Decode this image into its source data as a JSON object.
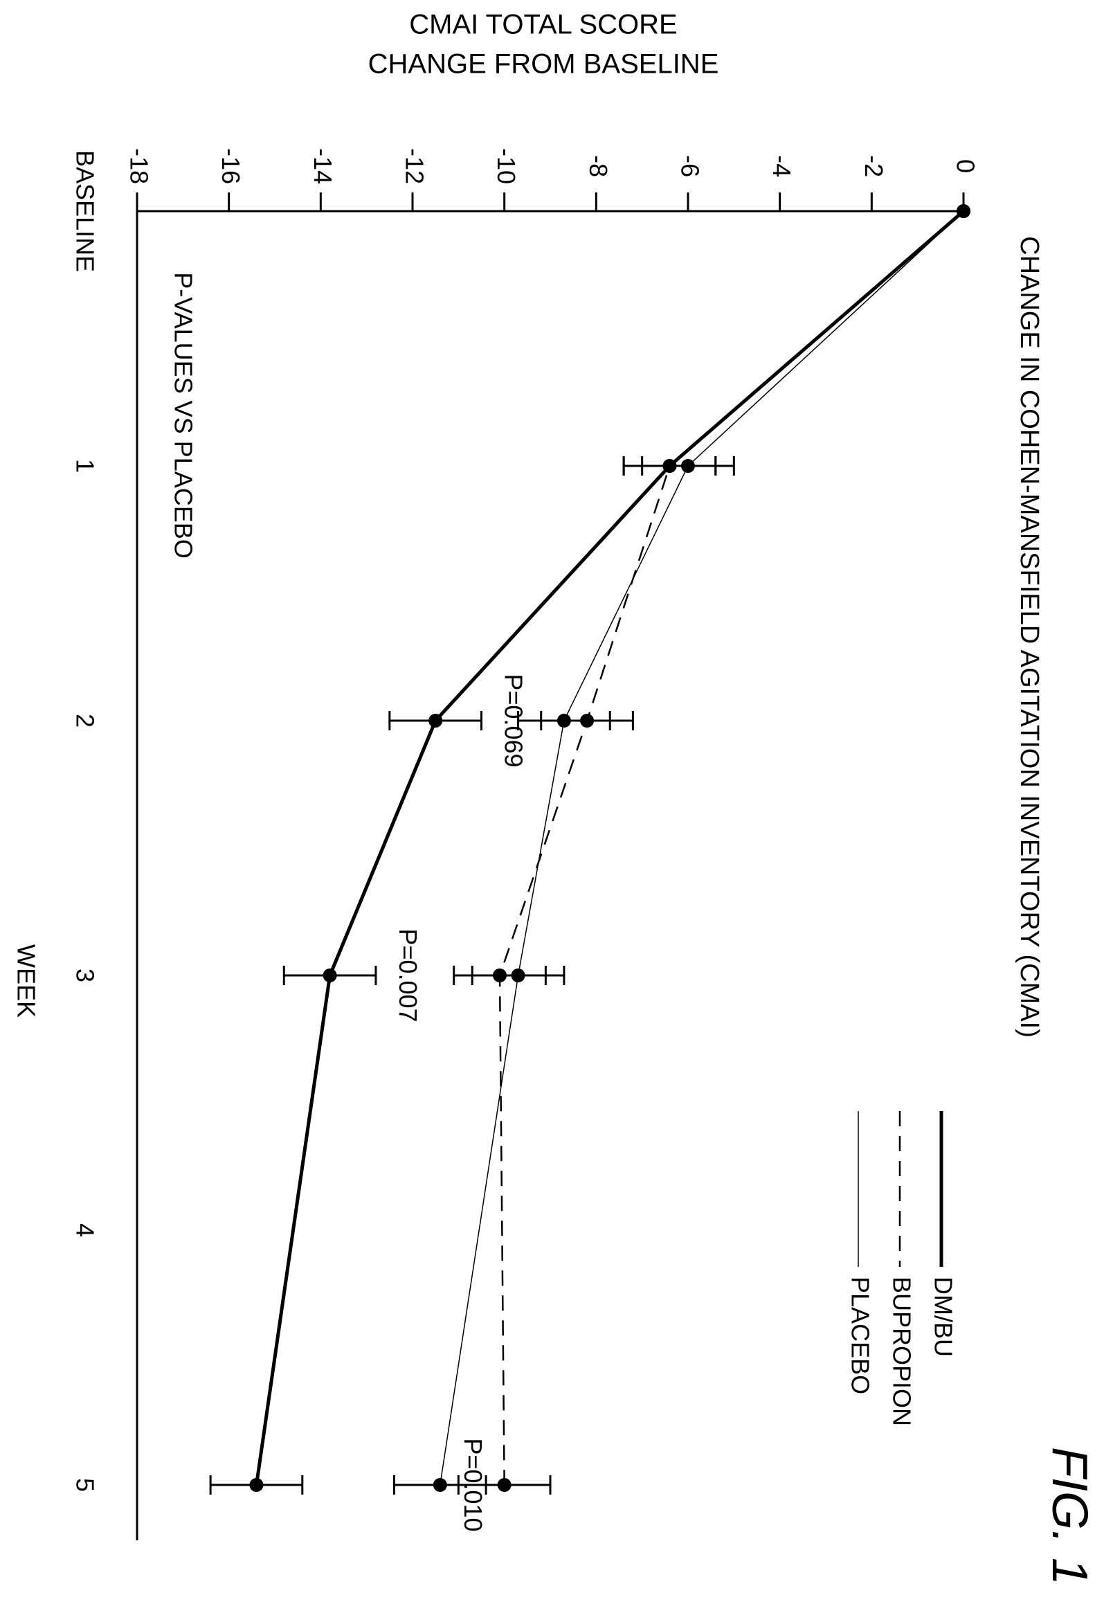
{
  "figure_label": "FIG. 1",
  "chart_data": {
    "type": "line",
    "title": "CHANGE IN COHEN-MANSFIELD AGITATION INVENTORY (CMAI)",
    "ylabel": "CMAI TOTAL SCORE\nCHANGE FROM BASELINE",
    "xlabel": "WEEK",
    "categories": [
      "BASELINE",
      "1",
      "2",
      "3",
      "4",
      "5"
    ],
    "x": [
      0,
      1,
      2,
      3,
      4,
      5
    ],
    "ylim": [
      -18,
      0
    ],
    "yticks": [
      0,
      -2,
      -4,
      -6,
      -8,
      -10,
      -12,
      -14,
      -16,
      -18
    ],
    "grid": false,
    "legend": "top-right",
    "series": [
      {
        "name": "DM/BU",
        "x": [
          0,
          1,
          2,
          3,
          5
        ],
        "values": [
          0,
          -6.4,
          -11.5,
          -13.8,
          -15.4
        ],
        "error": [
          null,
          1.0,
          1.0,
          1.0,
          1.0
        ],
        "style": "solid-thick"
      },
      {
        "name": "BUPROPION",
        "x": [
          0,
          1,
          2,
          3,
          5
        ],
        "values": [
          0,
          -6.4,
          -8.2,
          -10.1,
          -10.0
        ],
        "error": [
          null,
          1.0,
          1.0,
          1.0,
          1.0
        ],
        "style": "dashed"
      },
      {
        "name": "PLACEBO",
        "x": [
          0,
          1,
          2,
          3,
          5
        ],
        "values": [
          0,
          -6.0,
          -8.7,
          -9.7,
          -11.4
        ],
        "error": [
          null,
          1.0,
          1.0,
          1.0,
          1.0
        ],
        "style": "solid-thin"
      }
    ],
    "annotations": {
      "pvalue_header": "P-VALUES VS PLACEBO",
      "pvalues": [
        {
          "week": 2,
          "text": "P=0.069"
        },
        {
          "week": 3,
          "text": "P=0.007"
        },
        {
          "week": 5,
          "text": "P=0.010"
        }
      ]
    }
  }
}
